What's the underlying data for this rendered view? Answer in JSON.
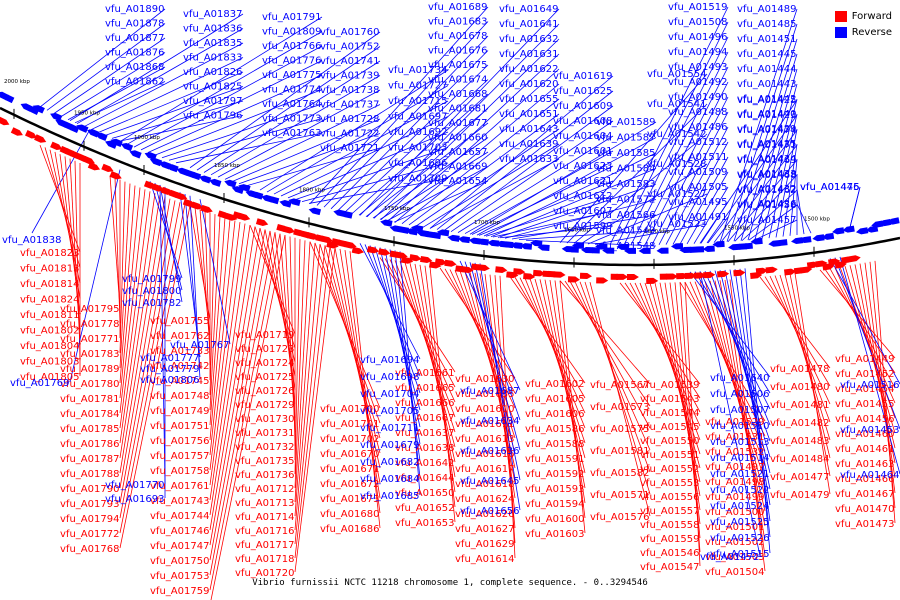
{
  "title": "Vibrio furnissii NCTC 11218 chromosome 1, complete sequence. - 0..3294546",
  "legend": [
    {
      "label": "Forward",
      "color": "#ff0000"
    },
    {
      "label": "Reverse",
      "color": "#0000ff"
    }
  ],
  "scale_ticks": [
    "2000 kbp",
    "1950 kbp",
    "1900 kbp",
    "1850 kbp",
    "1800 kbp",
    "1750 kbp",
    "1700 kbp",
    "1650 kbp",
    "1600 kbp",
    "1550 kbp",
    "1500 kbp"
  ],
  "colors": {
    "forward": "#ff0000",
    "reverse": "#0000ff",
    "backbone": "#000000"
  },
  "reverse_labels": [
    "vfu_A01890",
    "vfu_A01878",
    "vfu_A01877",
    "vfu_A01876",
    "vfu_A01868",
    "vfu_A01862",
    "vfu_A01837",
    "vfu_A01836",
    "vfu_A01835",
    "vfu_A01833",
    "vfu_A01826",
    "vfu_A01825",
    "vfu_A01797",
    "vfu_A01796",
    "vfu_A01791",
    "vfu_A01809",
    "vfu_A01766",
    "vfu_A01776",
    "vfu_A01775",
    "vfu_A01774",
    "vfu_A01764",
    "vfu_A01773",
    "vfu_A01763",
    "vfu_A01760",
    "vfu_A01752",
    "vfu_A01741",
    "vfu_A01739",
    "vfu_A01738",
    "vfu_A01737",
    "vfu_A01728",
    "vfu_A01722",
    "vfu_A01721",
    "vfu_A01734",
    "vfu_A01727",
    "vfu_A01715",
    "vfu_A01697",
    "vfu_A01692",
    "vfu_A01703",
    "vfu_A01696",
    "vfu_A01709",
    "vfu_A01689",
    "vfu_A01683",
    "vfu_A01678",
    "vfu_A01676",
    "vfu_A01675",
    "vfu_A01674",
    "vfu_A01668",
    "vfu_A01681",
    "vfu_A01677",
    "vfu_A01660",
    "vfu_A01657",
    "vfu_A01669",
    "vfu_A01654",
    "vfu_A01649",
    "vfu_A01641",
    "vfu_A01632",
    "vfu_A01631",
    "vfu_A01622",
    "vfu_A01620",
    "vfu_A01655",
    "vfu_A01651",
    "vfu_A01643",
    "vfu_A01639",
    "vfu_A01633",
    "vfu_A01619",
    "vfu_A01625",
    "vfu_A01609",
    "vfu_A01608",
    "vfu_A01604",
    "vfu_A01601",
    "vfu_A01623",
    "vfu_A01621",
    "vfu_A01612",
    "vfu_A01607",
    "vfu_A01599",
    "vfu_A01589",
    "vfu_A01587",
    "vfu_A01585",
    "vfu_A01584",
    "vfu_A01583",
    "vfu_A01572",
    "vfu_A01566",
    "vfu_A01549",
    "vfu_A01548",
    "vfu_A01554",
    "vfu_A01541",
    "vfu_A01542",
    "vfu_A01528",
    "vfu_A01527",
    "vfu_A01523",
    "vfu_A01519",
    "vfu_A01508",
    "vfu_A01496",
    "vfu_A01494",
    "vfu_A01493",
    "vfu_A01492",
    "vfu_A01490",
    "vfu_A01488",
    "vfu_A01486",
    "vfu_A01512",
    "vfu_A01511",
    "vfu_A01509",
    "vfu_A01505",
    "vfu_A01495",
    "vfu_A01491",
    "vfu_A01489",
    "vfu_A01485",
    "vfu_A01451",
    "vfu_A01445",
    "vfu_A01444",
    "vfu_A01443",
    "vfu_A01442",
    "vfu_A01440",
    "vfu_A01439",
    "vfu_A01435",
    "vfu_A01434",
    "vfu_A01433",
    "vfu_A01432",
    "vfu_A01426",
    "vfu_A01425",
    "vfu_A01423",
    "vfu_A01474",
    "vfu_A01471",
    "vfu_A01469",
    "vfu_A01468",
    "vfu_A01462",
    "vfu_A01458",
    "vfu_A01457",
    "vfu_A01446",
    "vfu_A01475",
    "vfu_A01838"
  ],
  "forward_labels": [
    "vfu_A01823",
    "vfu_A01813",
    "vfu_A01814",
    "vfu_A01824",
    "vfu_A01811",
    "vfu_A01802",
    "vfu_A01804",
    "vfu_A01803",
    "vfu_A01805",
    "vfu_A01795",
    "vfu_A01778",
    "vfu_A01771",
    "vfu_A01783",
    "vfu_A01789",
    "vfu_A01780",
    "vfu_A01781",
    "vfu_A01784",
    "vfu_A01785",
    "vfu_A01786",
    "vfu_A01787",
    "vfu_A01788",
    "vfu_A01790",
    "vfu_A01793",
    "vfu_A01794",
    "vfu_A01772",
    "vfu_A01768",
    "vfu_A01755",
    "vfu_A01762",
    "vfu_A01733",
    "vfu_A01742",
    "vfu_A01745",
    "vfu_A01748",
    "vfu_A01749",
    "vfu_A01751",
    "vfu_A01756",
    "vfu_A01757",
    "vfu_A01758",
    "vfu_A01761",
    "vfu_A01743",
    "vfu_A01744",
    "vfu_A01746",
    "vfu_A01747",
    "vfu_A01750",
    "vfu_A01753",
    "vfu_A01759",
    "vfu_A01765",
    "vfu_A01719",
    "vfu_A01723",
    "vfu_A01724",
    "vfu_A01725",
    "vfu_A01726",
    "vfu_A01729",
    "vfu_A01730",
    "vfu_A01731",
    "vfu_A01732",
    "vfu_A01735",
    "vfu_A01736",
    "vfu_A01712",
    "vfu_A01713",
    "vfu_A01714",
    "vfu_A01716",
    "vfu_A01717",
    "vfu_A01718",
    "vfu_A01720",
    "vfu_A01700",
    "vfu_A01701",
    "vfu_A01702",
    "vfu_A01670",
    "vfu_A01671",
    "vfu_A01672",
    "vfu_A01673",
    "vfu_A01680",
    "vfu_A01686",
    "vfu_A01661",
    "vfu_A01665",
    "vfu_A01666",
    "vfu_A01667",
    "vfu_A01637",
    "vfu_A01638",
    "vfu_A01642",
    "vfu_A01644",
    "vfu_A01650",
    "vfu_A01652",
    "vfu_A01653",
    "vfu_A01630",
    "vfu_A01635",
    "vfu_A01610",
    "vfu_A01611",
    "vfu_A01613",
    "vfu_A01616",
    "vfu_A01617",
    "vfu_A01618",
    "vfu_A01624",
    "vfu_A01626",
    "vfu_A01627",
    "vfu_A01629",
    "vfu_A01614",
    "vfu_A01602",
    "vfu_A01605",
    "vfu_A01606",
    "vfu_A01586",
    "vfu_A01588",
    "vfu_A01591",
    "vfu_A01592",
    "vfu_A01593",
    "vfu_A01594",
    "vfu_A01600",
    "vfu_A01603",
    "vfu_A01567",
    "vfu_A01573",
    "vfu_A01575",
    "vfu_A01581",
    "vfu_A01582",
    "vfu_A01571",
    "vfu_A01576",
    "vfu_A01539",
    "vfu_A01543",
    "vfu_A01544",
    "vfu_A01545",
    "vfu_A01550",
    "vfu_A01551",
    "vfu_A01552",
    "vfu_A01553",
    "vfu_A01556",
    "vfu_A01557",
    "vfu_A01558",
    "vfu_A01559",
    "vfu_A01546",
    "vfu_A01547",
    "vfu_A01529",
    "vfu_A01531",
    "vfu_A01532",
    "vfu_A01497",
    "vfu_A01498",
    "vfu_A01499",
    "vfu_A01500",
    "vfu_A01501",
    "vfu_A01502",
    "vfu_A01503",
    "vfu_A01504",
    "vfu_A01478",
    "vfu_A01480",
    "vfu_A01481",
    "vfu_A01482",
    "vfu_A01483",
    "vfu_A01484",
    "vfu_A01477",
    "vfu_A01479",
    "vfu_A01449",
    "vfu_A01452",
    "vfu_A01454",
    "vfu_A01455",
    "vfu_A01456",
    "vfu_A01460",
    "vfu_A01461",
    "vfu_A01463",
    "vfu_A01466",
    "vfu_A01467",
    "vfu_A01470",
    "vfu_A01473"
  ],
  "reverse_labels_below": [
    "vfu_A01799",
    "vfu_A01800",
    "vfu_A01782",
    "vfu_A01777",
    "vfu_A01779",
    "vfu_A01806",
    "vfu_A01769",
    "vfu_A01767",
    "vfu_A01770",
    "vfu_A01693",
    "vfu_A01694",
    "vfu_A01698",
    "vfu_A01704",
    "vfu_A01705",
    "vfu_A01711",
    "vfu_A01679",
    "vfu_A01682",
    "vfu_A01684",
    "vfu_A01685",
    "vfu_A01687",
    "vfu_A01634",
    "vfu_A01636",
    "vfu_A01645",
    "vfu_A01656",
    "vfu_A01640",
    "vfu_A01506",
    "vfu_A01507",
    "vfu_A01510",
    "vfu_A01513",
    "vfu_A01514",
    "vfu_A01521",
    "vfu_A01522",
    "vfu_A01524",
    "vfu_A01525",
    "vfu_A01526",
    "vfu_A01515",
    "vfu_A01516",
    "vfu_A01453",
    "vfu_A01464",
    "vfu_A01472"
  ]
}
